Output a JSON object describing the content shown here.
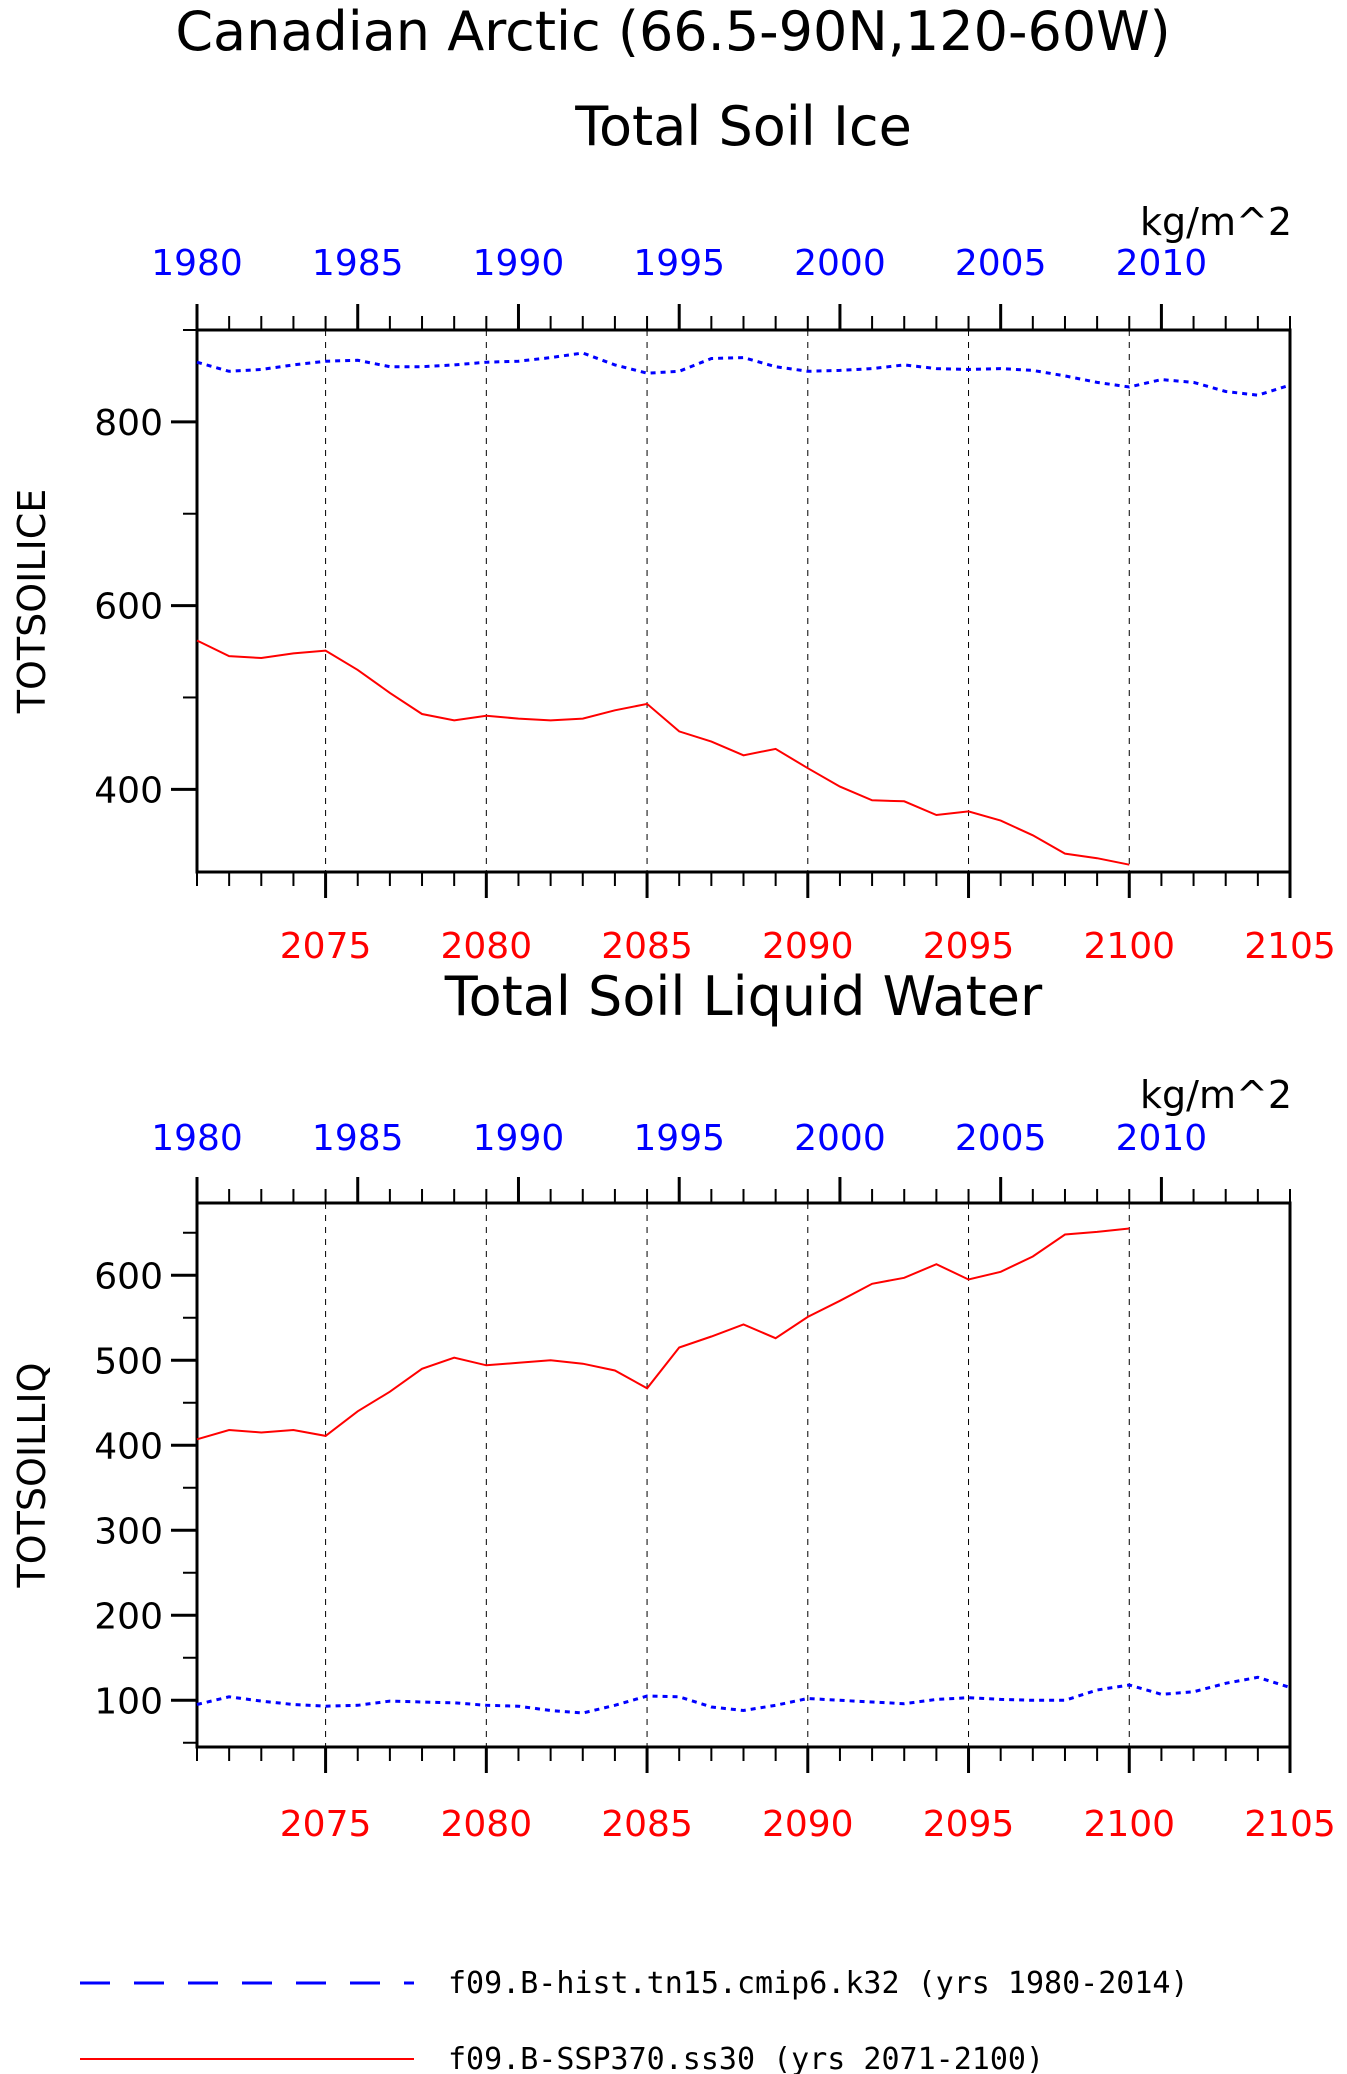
{
  "page": {
    "title_line1": "Canadian Arctic (66.5-90N,120-60W)",
    "colors": {
      "hist": "#0000ff",
      "ssp": "#ff0000",
      "axis": "#000000"
    }
  },
  "legend": {
    "hist_label": "f09.B-hist.tn15.cmip6.k32 (yrs 1980-2014)",
    "ssp_label": "f09.B-SSP370.ss30 (yrs 2071-2100)"
  },
  "chart_data": [
    {
      "type": "line",
      "title": "Total Soil Ice",
      "ylabel": "TOTSOILICE",
      "units": "kg/m^2",
      "ylim": [
        310,
        900
      ],
      "yticks": [
        400,
        600,
        800
      ],
      "top_axis": {
        "xlim": [
          1980,
          2014
        ],
        "ticks": [
          1980,
          1985,
          1990,
          1995,
          2000,
          2005,
          2010
        ]
      },
      "bottom_axis": {
        "xlim": [
          2071,
          2105
        ],
        "ticks": [
          2075,
          2080,
          2085,
          2090,
          2095,
          2100,
          2105
        ]
      },
      "series": [
        {
          "name": "f09.B-hist.tn15.cmip6.k32 (yrs 1980-2014)",
          "axis": "top",
          "style": "dashed",
          "x": [
            1980,
            1981,
            1982,
            1983,
            1984,
            1985,
            1986,
            1987,
            1988,
            1989,
            1990,
            1991,
            1992,
            1993,
            1994,
            1995,
            1996,
            1997,
            1998,
            1999,
            2000,
            2001,
            2002,
            2003,
            2004,
            2005,
            2006,
            2007,
            2008,
            2009,
            2010,
            2011,
            2012,
            2013,
            2014
          ],
          "values": [
            865,
            855,
            857,
            862,
            866,
            867,
            860,
            860,
            862,
            865,
            866,
            870,
            875,
            862,
            853,
            855,
            869,
            870,
            860,
            855,
            856,
            858,
            862,
            858,
            857,
            858,
            856,
            850,
            843,
            838,
            846,
            843,
            833,
            829,
            840
          ]
        },
        {
          "name": "f09.B-SSP370.ss30 (yrs 2071-2100)",
          "axis": "bottom",
          "style": "solid",
          "x": [
            2071,
            2072,
            2073,
            2074,
            2075,
            2076,
            2077,
            2078,
            2079,
            2080,
            2081,
            2082,
            2083,
            2084,
            2085,
            2086,
            2087,
            2088,
            2089,
            2090,
            2091,
            2092,
            2093,
            2094,
            2095,
            2096,
            2097,
            2098,
            2099,
            2100
          ],
          "values": [
            562,
            545,
            543,
            548,
            551,
            530,
            505,
            482,
            475,
            480,
            477,
            475,
            477,
            486,
            493,
            463,
            452,
            437,
            444,
            423,
            403,
            388,
            387,
            372,
            376,
            366,
            350,
            330,
            325,
            318
          ]
        }
      ]
    },
    {
      "type": "line",
      "title": "Total Soil Liquid Water",
      "ylabel": "TOTSOILLIQ",
      "units": "kg/m^2",
      "ylim": [
        45,
        685
      ],
      "yticks": [
        100,
        200,
        300,
        400,
        500,
        600
      ],
      "top_axis": {
        "xlim": [
          1980,
          2014
        ],
        "ticks": [
          1980,
          1985,
          1990,
          1995,
          2000,
          2005,
          2010
        ]
      },
      "bottom_axis": {
        "xlim": [
          2071,
          2105
        ],
        "ticks": [
          2075,
          2080,
          2085,
          2090,
          2095,
          2100,
          2105
        ]
      },
      "series": [
        {
          "name": "f09.B-hist.tn15.cmip6.k32 (yrs 1980-2014)",
          "axis": "top",
          "style": "dashed",
          "x": [
            1980,
            1981,
            1982,
            1983,
            1984,
            1985,
            1986,
            1987,
            1988,
            1989,
            1990,
            1991,
            1992,
            1993,
            1994,
            1995,
            1996,
            1997,
            1998,
            1999,
            2000,
            2001,
            2002,
            2003,
            2004,
            2005,
            2006,
            2007,
            2008,
            2009,
            2010,
            2011,
            2012,
            2013,
            2014
          ],
          "values": [
            95,
            104,
            99,
            95,
            93,
            94,
            99,
            98,
            97,
            94,
            93,
            88,
            85,
            94,
            105,
            104,
            92,
            88,
            94,
            102,
            100,
            98,
            96,
            101,
            103,
            101,
            100,
            100,
            112,
            118,
            107,
            110,
            120,
            127,
            115
          ]
        },
        {
          "name": "f09.B-SSP370.ss30 (yrs 2071-2100)",
          "axis": "bottom",
          "style": "solid",
          "x": [
            2071,
            2072,
            2073,
            2074,
            2075,
            2076,
            2077,
            2078,
            2079,
            2080,
            2081,
            2082,
            2083,
            2084,
            2085,
            2086,
            2087,
            2088,
            2089,
            2090,
            2091,
            2092,
            2093,
            2094,
            2095,
            2096,
            2097,
            2098,
            2099,
            2100
          ],
          "values": [
            407,
            418,
            415,
            418,
            411,
            440,
            463,
            490,
            503,
            494,
            497,
            500,
            496,
            488,
            467,
            515,
            528,
            542,
            526,
            551,
            570,
            590,
            597,
            613,
            595,
            604,
            622,
            648,
            651,
            655
          ]
        }
      ]
    }
  ]
}
